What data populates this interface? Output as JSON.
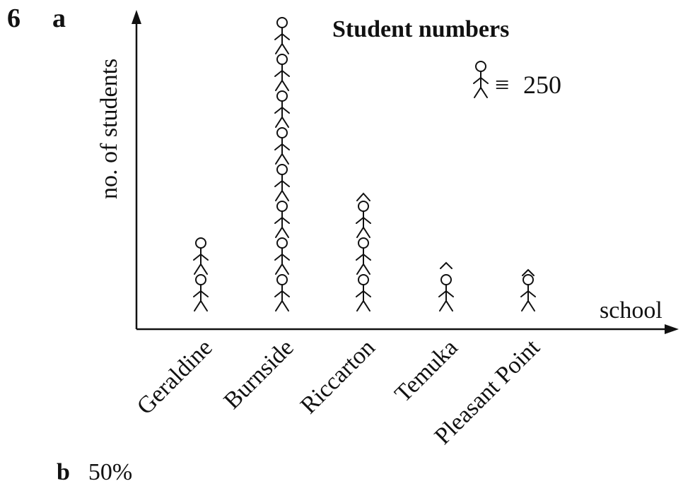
{
  "question": {
    "number": "6",
    "part_a": "a",
    "part_b": "b",
    "part_b_answer": "50%"
  },
  "chart_data": {
    "type": "pictogram",
    "title": "Student numbers",
    "xlabel": "school",
    "ylabel": "no. of students",
    "key": {
      "symbol": "stick-figure",
      "equiv": "≡",
      "value": "250"
    },
    "categories": [
      "Geraldine",
      "Burnside",
      "Riccarton",
      "Temuka",
      "Pleasant Point"
    ],
    "symbols": [
      2,
      8,
      3.5,
      1.75,
      1.25
    ],
    "values": [
      500,
      2000,
      875,
      437.5,
      312.5
    ]
  }
}
